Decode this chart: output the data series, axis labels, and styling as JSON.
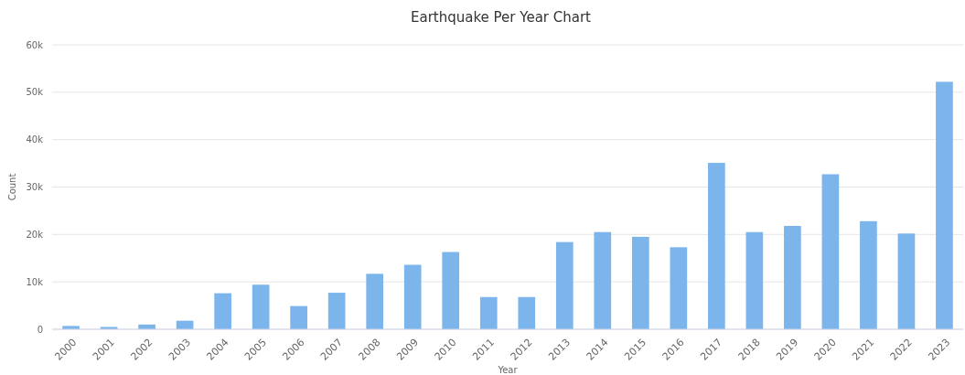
{
  "chart_data": {
    "type": "bar",
    "title": "Earthquake Per Year Chart",
    "xlabel": "Year",
    "ylabel": "Count",
    "categories": [
      "2000",
      "2001",
      "2002",
      "2003",
      "2004",
      "2005",
      "2006",
      "2007",
      "2008",
      "2009",
      "2010",
      "2011",
      "2012",
      "2013",
      "2014",
      "2015",
      "2016",
      "2017",
      "2018",
      "2019",
      "2020",
      "2021",
      "2022",
      "2023"
    ],
    "values": [
      700,
      500,
      1000,
      1800,
      7600,
      9400,
      4900,
      7700,
      11700,
      13600,
      16300,
      6800,
      6800,
      18400,
      20500,
      19500,
      17300,
      35100,
      20500,
      21800,
      32700,
      22800,
      20200,
      52200
    ],
    "color": "#7cb5ec",
    "ylim": [
      0,
      60000
    ],
    "yticks": [
      0,
      {
        "value": 10000,
        "label": "10k"
      },
      {
        "value": 20000,
        "label": "20k"
      },
      {
        "value": 30000,
        "label": "30k"
      },
      {
        "value": 40000,
        "label": "40k"
      },
      {
        "value": 50000,
        "label": "50k"
      },
      {
        "value": 60000,
        "label": "60k"
      }
    ],
    "grid": true
  }
}
